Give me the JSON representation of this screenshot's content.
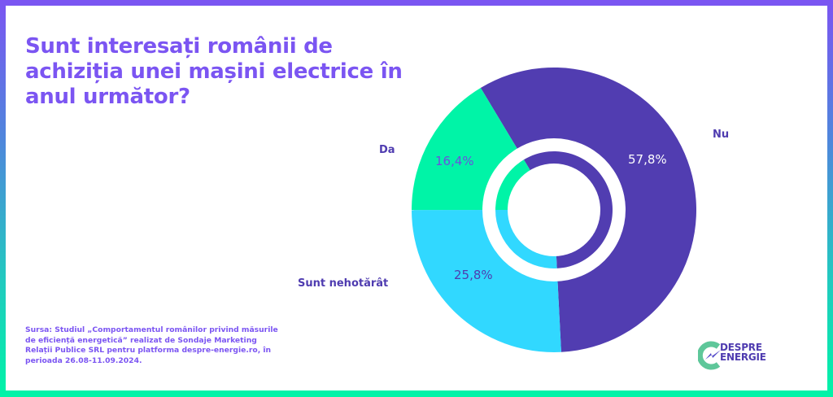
{
  "title": "Sunt interesați românii de achiziția unei mașini electrice în anul următor?",
  "source": "Sursa: Studiul „Comportamentul românilor privind măsurile de eficiență energetică” realizat de Sondaje Marketing Relații Publice SRL pentru platforma despre-energie.ro, în perioada 26.08-11.09.2024.",
  "logo": {
    "line1": "DESPRE",
    "line2": "ENERGIE",
    "icon": "despre-energie-logo-icon"
  },
  "colors": {
    "frame_top": "#7b55f2",
    "frame_bottom": "#00f4a7",
    "title": "#7b55f2",
    "nu": "#513db1",
    "da": "#00f4a7",
    "nehotarat": "#31d8ff",
    "category_label": "#4f3cb0"
  },
  "chart_data": {
    "type": "pie",
    "variant": "donut",
    "title": "Sunt interesați românii de achiziția unei mașini electrice în anul următor?",
    "categories": [
      "Nu",
      "Sunt nehotărât",
      "Da"
    ],
    "values": [
      57.8,
      25.8,
      16.4
    ],
    "value_labels": [
      "57,8%",
      "25,8%",
      "16,4%"
    ],
    "colors": [
      "#513db1",
      "#31d8ff",
      "#00f4a7"
    ],
    "unit": "%",
    "legend": "none (direct labels)",
    "labels": {
      "nu": {
        "category": "Nu",
        "value": "57,8%"
      },
      "nehotarat": {
        "category": "Sunt nehotărât",
        "value": "25,8%"
      },
      "da": {
        "category": "Da",
        "value": "16,4%"
      }
    }
  }
}
